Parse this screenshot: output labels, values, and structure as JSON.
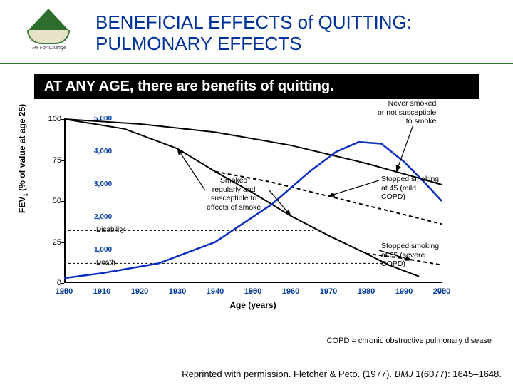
{
  "header": {
    "logo_banner": "Rx For Change",
    "title_line1": "BENEFICIAL EFFECTS of QUITTING:",
    "title_line2": "PULMONARY EFFECTS",
    "title_color": "#003399"
  },
  "subtitle": "AT ANY AGE, there are benefits of quitting.",
  "chart": {
    "type": "line",
    "ylabel_html": "FEV₁ (% of value at age 25)",
    "xlabel": "Age (years)",
    "ylim": [
      0,
      100
    ],
    "yticks": [
      0,
      25,
      50,
      75,
      100
    ],
    "ytick_labels": [
      "0",
      "25",
      "50",
      "75",
      "100"
    ],
    "secondary_y_values": [
      1000,
      2000,
      3000,
      4000,
      5000
    ],
    "secondary_y_labels": [
      "1,000",
      "2,000",
      "3,000",
      "4,000",
      "5,000"
    ],
    "xlim": [
      25,
      75
    ],
    "xticks": [
      25,
      50,
      75
    ],
    "xtick_labels": [
      "25",
      "50",
      "75"
    ],
    "decades": [
      1900,
      1910,
      1920,
      1930,
      1940,
      1950,
      1960,
      1970,
      1980,
      1990,
      2000
    ],
    "stroke_color": "#000000",
    "line_width": 2,
    "curves": {
      "never_smoked": {
        "pts": [
          [
            25,
            100
          ],
          [
            35,
            97
          ],
          [
            45,
            92
          ],
          [
            55,
            84
          ],
          [
            65,
            73
          ],
          [
            72,
            64
          ],
          [
            75,
            60
          ]
        ]
      },
      "smoker": {
        "pts": [
          [
            25,
            100
          ],
          [
            33,
            94
          ],
          [
            40,
            82
          ],
          [
            45,
            68
          ],
          [
            50,
            55
          ],
          [
            55,
            41
          ],
          [
            60,
            29
          ],
          [
            65,
            18
          ],
          [
            68,
            11
          ],
          [
            72,
            4
          ]
        ]
      },
      "stopped45": {
        "pts": [
          [
            45,
            68
          ],
          [
            52,
            62
          ],
          [
            60,
            53
          ],
          [
            68,
            44
          ],
          [
            75,
            36
          ]
        ],
        "dash": "5,4"
      },
      "stopped65": {
        "pts": [
          [
            65,
            18
          ],
          [
            70,
            15
          ],
          [
            75,
            11
          ]
        ],
        "dash": "5,4"
      },
      "death_line": {
        "y": 12,
        "x_to": 68
      },
      "disability_line": {
        "y": 32,
        "x_to": 58
      }
    },
    "pop_curve_color": "#0a2fbf",
    "pop_curve": [
      [
        1900,
        3
      ],
      [
        1910,
        6
      ],
      [
        1925,
        12
      ],
      [
        1940,
        25
      ],
      [
        1955,
        48
      ],
      [
        1965,
        68
      ],
      [
        1972,
        80
      ],
      [
        1978,
        86
      ],
      [
        1984,
        85
      ],
      [
        1990,
        74
      ],
      [
        1996,
        60
      ],
      [
        2000,
        50
      ]
    ],
    "annotations": {
      "never": {
        "text_lines": [
          "Never smoked",
          "or not susceptible",
          "to smoke"
        ]
      },
      "smoker": {
        "text_lines": [
          "Smoked",
          "regularly and",
          "susceptible to",
          "effects of smoke"
        ]
      },
      "stopped45": {
        "text_lines": [
          "Stopped smoking",
          "at 45 (mild COPD)"
        ]
      },
      "stopped65": {
        "text_lines": [
          "Stopped smoking",
          "at 65 (severe",
          "COPD)"
        ]
      },
      "disability": "Disability",
      "death": "Death"
    },
    "arrow_color": "#000000"
  },
  "footnote": "COPD = chronic obstructive pulmonary disease",
  "citation_html": "Reprinted with permission. Fletcher & Peto. (1977). BMJ 1(6077): 1645–1648."
}
